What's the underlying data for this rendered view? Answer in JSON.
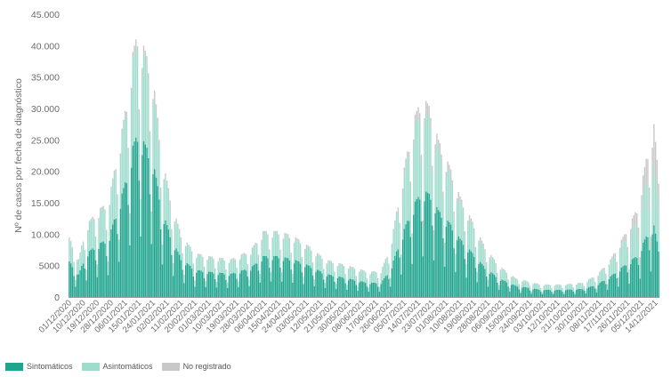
{
  "colors": {
    "sintomaticos": "#1fa48e",
    "asintomaticos": "#9fdccd",
    "no_registrado": "#c8c8c8",
    "axis": "#6b6b6b"
  },
  "legend": [
    {
      "label": "Sintomáticos",
      "color": "#1fa48e"
    },
    {
      "label": "Asintomáticos",
      "color": "#9fdccd"
    },
    {
      "label": "No registrado",
      "color": "#c8c8c8"
    }
  ],
  "chart_data": {
    "type": "bar",
    "stacked": true,
    "title": "",
    "xlabel": "",
    "ylabel": "Nº de casos por fecha de diagnóstico",
    "ylim": [
      0,
      45000
    ],
    "yticks": [
      0,
      5000,
      10000,
      15000,
      20000,
      25000,
      30000,
      35000,
      40000,
      45000
    ],
    "ytick_labels": [
      "0",
      "5000",
      "10.000",
      "15.000",
      "20.000",
      "25.000",
      "30.000",
      "35.000",
      "40.000",
      "45.000"
    ],
    "x_start": "01/12/2020",
    "x_end": "16/12/2021",
    "x_tick_labels": [
      "01/12/2020",
      "10/12/2020",
      "19/12/2020",
      "28/12/2020",
      "06/01/2021",
      "15/01/2021",
      "24/01/2021",
      "02/02/2021",
      "11/02/2021",
      "20/02/2021",
      "01/03/2021",
      "10/03/2021",
      "19/03/2021",
      "28/03/2021",
      "06/04/2021",
      "15/04/2021",
      "24/04/2021",
      "03/05/2021",
      "12/05/2021",
      "21/05/2021",
      "30/05/2021",
      "08/06/2021",
      "17/06/2021",
      "26/06/2021",
      "05/07/2021",
      "14/07/2021",
      "23/07/2021",
      "01/08/2021",
      "10/08/2021",
      "19/08/2021",
      "28/08/2021",
      "06/09/2021",
      "15/09/2021",
      "24/09/2021",
      "03/10/2021",
      "12/10/2021",
      "21/10/2021",
      "30/10/2021",
      "08/11/2021",
      "17/11/2021",
      "26/11/2021",
      "05/12/2021",
      "14/12/2021"
    ],
    "series_names": [
      "Sintomáticos",
      "Asintomáticos",
      "No registrado"
    ],
    "total_anchors": [
      [
        "01/12/2020",
        9500
      ],
      [
        "07/12/2020",
        6000
      ],
      [
        "12/12/2020",
        11500
      ],
      [
        "20/12/2020",
        14000
      ],
      [
        "26/12/2020",
        15000
      ],
      [
        "02/01/2021",
        24000
      ],
      [
        "07/01/2021",
        31000
      ],
      [
        "11/01/2021",
        39000
      ],
      [
        "14/01/2021",
        42000
      ],
      [
        "18/01/2021",
        40000
      ],
      [
        "24/01/2021",
        35000
      ],
      [
        "30/01/2021",
        22000
      ],
      [
        "05/02/2021",
        15000
      ],
      [
        "11/02/2021",
        10000
      ],
      [
        "20/02/2021",
        7000
      ],
      [
        "01/03/2021",
        6500
      ],
      [
        "15/03/2021",
        6000
      ],
      [
        "28/03/2021",
        7500
      ],
      [
        "05/04/2021",
        10500
      ],
      [
        "16/04/2021",
        10500
      ],
      [
        "26/04/2021",
        9500
      ],
      [
        "05/05/2021",
        8000
      ],
      [
        "15/05/2021",
        6000
      ],
      [
        "30/05/2021",
        5000
      ],
      [
        "12/06/2021",
        4000
      ],
      [
        "20/06/2021",
        4200
      ],
      [
        "26/06/2021",
        8000
      ],
      [
        "01/07/2021",
        15000
      ],
      [
        "06/07/2021",
        22000
      ],
      [
        "12/07/2021",
        29000
      ],
      [
        "17/07/2021",
        32000
      ],
      [
        "22/07/2021",
        30000
      ],
      [
        "27/07/2021",
        25000
      ],
      [
        "03/08/2021",
        21000
      ],
      [
        "10/08/2021",
        16000
      ],
      [
        "18/08/2021",
        12000
      ],
      [
        "26/08/2021",
        8000
      ],
      [
        "04/09/2021",
        5000
      ],
      [
        "15/09/2021",
        3000
      ],
      [
        "01/10/2021",
        2000
      ],
      [
        "15/10/2021",
        2000
      ],
      [
        "28/10/2021",
        2300
      ],
      [
        "06/11/2021",
        3500
      ],
      [
        "15/11/2021",
        6000
      ],
      [
        "24/11/2021",
        10000
      ],
      [
        "02/12/2021",
        14000
      ],
      [
        "08/12/2021",
        22000
      ],
      [
        "13/12/2021",
        27500
      ],
      [
        "16/12/2021",
        19000
      ]
    ],
    "symptomatic_share": [
      [
        "01/12/2020",
        0.6
      ],
      [
        "15/01/2021",
        0.62
      ],
      [
        "15/03/2021",
        0.62
      ],
      [
        "15/05/2021",
        0.62
      ],
      [
        "20/06/2021",
        0.55
      ],
      [
        "10/07/2021",
        0.52
      ],
      [
        "10/08/2021",
        0.58
      ],
      [
        "15/09/2021",
        0.6
      ],
      [
        "15/11/2021",
        0.55
      ],
      [
        "16/12/2021",
        0.4
      ]
    ],
    "not_registered_share": [
      [
        "01/12/2020",
        0.02
      ],
      [
        "15/01/2021",
        0.03
      ],
      [
        "01/07/2021",
        0.03
      ],
      [
        "20/07/2021",
        0.06
      ],
      [
        "01/11/2021",
        0.03
      ],
      [
        "05/12/2021",
        0.15
      ],
      [
        "16/12/2021",
        0.25
      ]
    ],
    "weekly_pattern": [
      1.0,
      1.0,
      1.0,
      0.95,
      0.72,
      0.38,
      0.9
    ],
    "grid": false,
    "legend_position": "bottom-left"
  }
}
